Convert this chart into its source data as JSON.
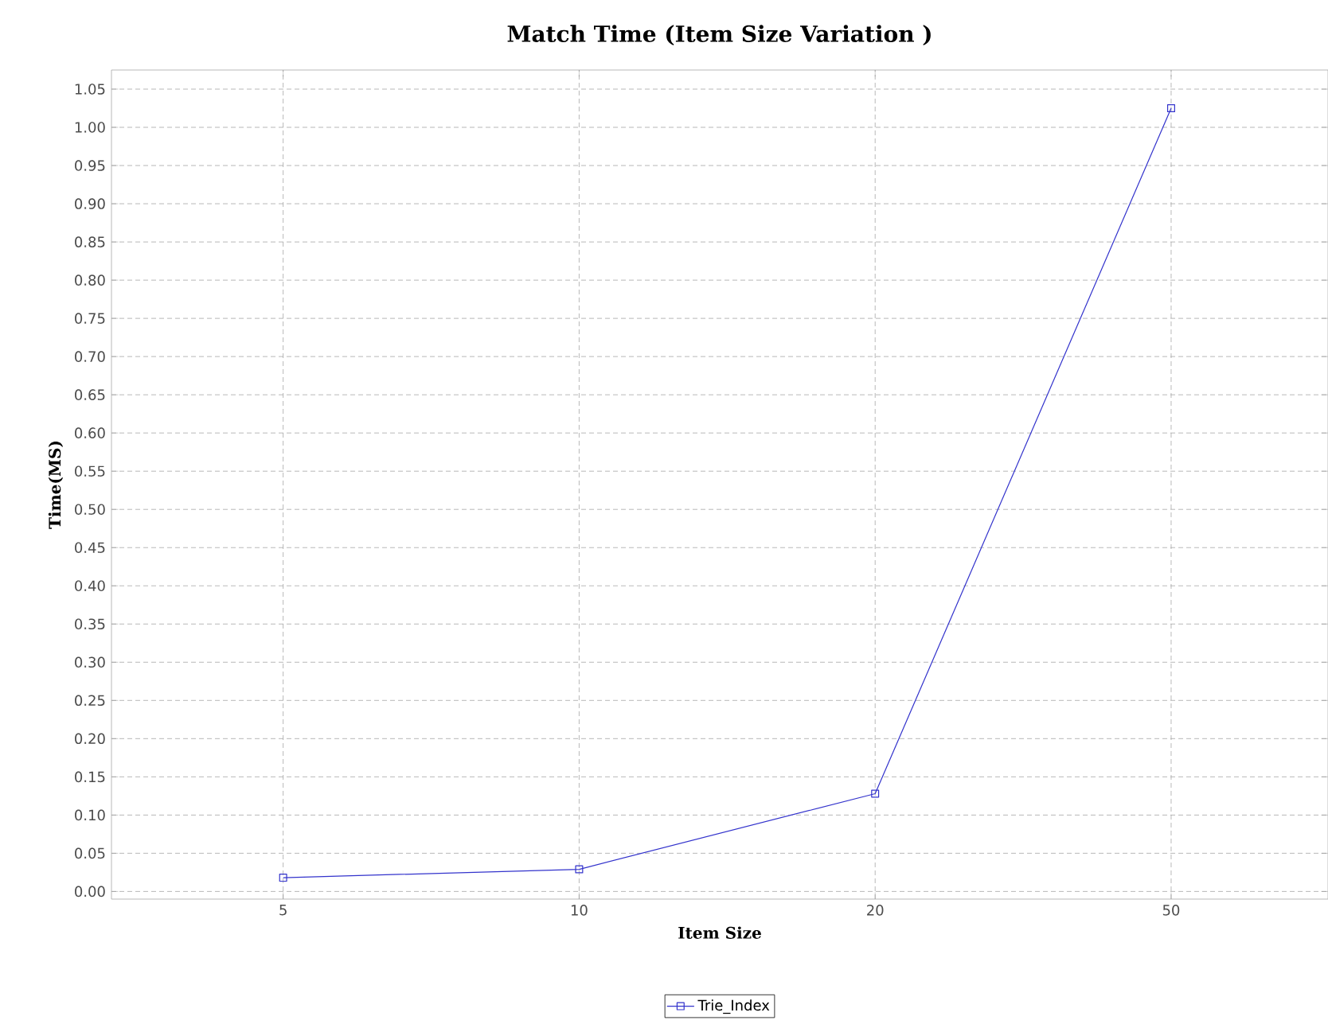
{
  "chart_data": {
    "type": "line",
    "title": "Match Time (Item Size Variation )",
    "xlabel": "Item Size",
    "ylabel": "Time(MS)",
    "categories": [
      "5",
      "10",
      "20",
      "50"
    ],
    "series": [
      {
        "name": "Trie_Index",
        "color": "#3333cc",
        "values": [
          0.018,
          0.029,
          0.128,
          1.025
        ]
      }
    ],
    "ylim": [
      -0.01,
      1.075
    ],
    "yticks": [
      {
        "value": 0,
        "label": "0.00"
      },
      {
        "value": 0.05,
        "label": "0.05"
      },
      {
        "value": 0.1,
        "label": "0.10"
      },
      {
        "value": 0.15,
        "label": "0.15"
      },
      {
        "value": 0.2,
        "label": "0.20"
      },
      {
        "value": 0.25,
        "label": "0.25"
      },
      {
        "value": 0.3,
        "label": "0.30"
      },
      {
        "value": 0.35,
        "label": "0.35"
      },
      {
        "value": 0.4,
        "label": "0.40"
      },
      {
        "value": 0.45,
        "label": "0.45"
      },
      {
        "value": 0.5,
        "label": "0.50"
      },
      {
        "value": 0.55,
        "label": "0.55"
      },
      {
        "value": 0.6,
        "label": "0.60"
      },
      {
        "value": 0.65,
        "label": "0.65"
      },
      {
        "value": 0.7,
        "label": "0.70"
      },
      {
        "value": 0.75,
        "label": "0.75"
      },
      {
        "value": 0.8,
        "label": "0.80"
      },
      {
        "value": 0.85,
        "label": "0.85"
      },
      {
        "value": 0.9,
        "label": "0.90"
      },
      {
        "value": 0.95,
        "label": "0.95"
      },
      {
        "value": 1.0,
        "label": "1.00"
      },
      {
        "value": 1.05,
        "label": "1.05"
      }
    ],
    "grid": true,
    "legend": "bottom",
    "marker": "square",
    "line_style": "solid"
  }
}
